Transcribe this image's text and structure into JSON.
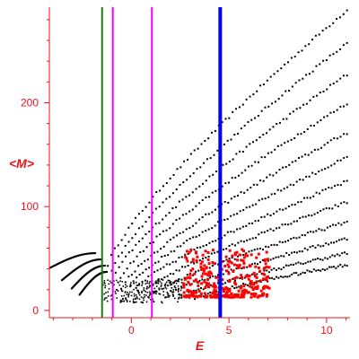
{
  "chart_data": {
    "type": "scatter",
    "xlabel": "E",
    "ylabel": "<M>",
    "xlim": [
      -4.2,
      11.2
    ],
    "ylim": [
      -7,
      292
    ],
    "x_ticks": [
      0,
      5,
      10
    ],
    "y_ticks": [
      0,
      100,
      200
    ],
    "grid": false,
    "axis_color": "#e8141c",
    "vertical_lines": [
      {
        "x": -1.5,
        "color": "#1a7a1a"
      },
      {
        "x": -0.95,
        "color": "#ff00ff"
      },
      {
        "x": 1.05,
        "color": "#ff00ff"
      },
      {
        "x": 4.55,
        "color": "#0000ff"
      }
    ],
    "series": [
      {
        "color": "#000000",
        "trajectories": [
          {
            "x0": -1.25,
            "y0": 45,
            "x1": 11.0,
            "y1": 290
          },
          {
            "x0": -1.05,
            "y0": 40,
            "x1": 11.0,
            "y1": 258
          },
          {
            "x0": -0.85,
            "y0": 36,
            "x1": 11.0,
            "y1": 228
          },
          {
            "x0": -0.6,
            "y0": 32,
            "x1": 11.0,
            "y1": 200
          },
          {
            "x0": -0.35,
            "y0": 28,
            "x1": 11.0,
            "y1": 172
          },
          {
            "x0": -0.1,
            "y0": 25,
            "x1": 11.0,
            "y1": 148
          },
          {
            "x0": 0.2,
            "y0": 22,
            "x1": 11.0,
            "y1": 125
          },
          {
            "x0": 0.6,
            "y0": 19,
            "x1": 11.0,
            "y1": 105
          },
          {
            "x0": 1.1,
            "y0": 17,
            "x1": 11.0,
            "y1": 86
          },
          {
            "x0": 1.7,
            "y0": 15,
            "x1": 11.0,
            "y1": 70
          },
          {
            "x0": 2.4,
            "y0": 13,
            "x1": 11.0,
            "y1": 56
          },
          {
            "x0": 3.2,
            "y0": 12,
            "x1": 11.0,
            "y1": 45
          }
        ],
        "fans": [
          {
            "x0": -4.2,
            "y0": 42,
            "x1": -1.9,
            "y1": 56
          },
          {
            "x0": -3.6,
            "y0": 30,
            "x1": -1.6,
            "y1": 50
          },
          {
            "x0": -3.1,
            "y0": 22,
            "x1": -1.4,
            "y1": 44
          },
          {
            "x0": -2.7,
            "y0": 16,
            "x1": -1.3,
            "y1": 38
          }
        ],
        "cluster": {
          "x_range": [
            -1.5,
            2.6
          ],
          "y_range": [
            8,
            30
          ],
          "count": 230
        }
      },
      {
        "color": "#ff0000",
        "cluster": {
          "x_range": [
            2.6,
            7.0
          ],
          "y_range": [
            14,
            60
          ],
          "count": 300
        }
      }
    ]
  }
}
